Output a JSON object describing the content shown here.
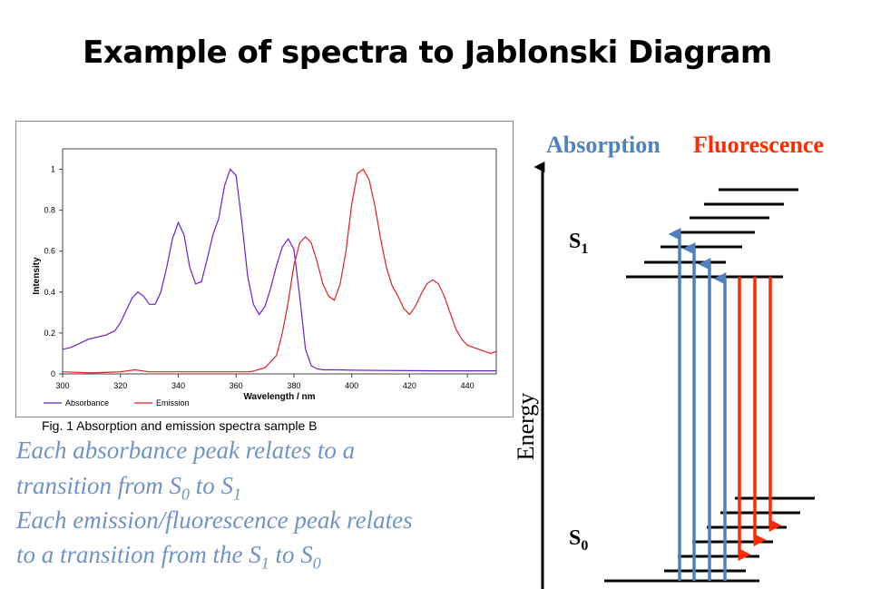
{
  "slide": {
    "title": "Example of spectra to Jablonski Diagram",
    "caption": "Fig. 1 Absorption and emission spectra sample B",
    "note_line1": "Each absorbance peak relates to a",
    "note_line2_pre": "transition from S",
    "note_line2_sub1": "0",
    "note_line2_mid": " to S",
    "note_line2_sub2": "1",
    "note_line3": "Each emission/fluorescence peak relates",
    "note_line4_pre": "to a transition from the S",
    "note_line4_sub1": "1",
    "note_line4_mid": " to S",
    "note_line4_sub2": "0"
  },
  "jablonski": {
    "absorption_label": "Absorption",
    "fluorescence_label": "Fluorescence",
    "s1_label": "S",
    "s1_sub": "1",
    "s0_label": "S",
    "s0_sub": "0",
    "energy_label": "Energy",
    "absorption_color": "#4f81bd",
    "fluorescence_color": "#ff2a00"
  },
  "chart_data": {
    "type": "line",
    "title": "",
    "xlabel": "Wavelength / nm",
    "ylabel": "Intensity",
    "xlim": [
      300,
      450
    ],
    "ylim": [
      0,
      1.1
    ],
    "x_ticks": [
      "300",
      "320",
      "340",
      "360",
      "380",
      "400",
      "420",
      "440"
    ],
    "y_ticks": [
      "0",
      "0.2",
      "0.4",
      "0.6",
      "0.8",
      "1"
    ],
    "legend": "bottom-left",
    "series": [
      {
        "name": "Absorbance",
        "color": "#6a1fd1",
        "x": [
          300,
          303,
          306,
          309,
          312,
          315,
          318,
          320,
          322,
          324,
          326,
          328,
          330,
          332,
          334,
          336,
          338,
          340,
          342,
          344,
          346,
          348,
          350,
          352,
          354,
          356,
          358,
          360,
          362,
          364,
          366,
          368,
          370,
          372,
          374,
          376,
          378,
          380,
          382,
          384,
          386,
          388,
          390,
          395,
          400,
          410,
          420,
          430,
          440,
          450
        ],
        "y": [
          0.12,
          0.13,
          0.15,
          0.17,
          0.18,
          0.19,
          0.21,
          0.25,
          0.31,
          0.37,
          0.4,
          0.38,
          0.34,
          0.34,
          0.4,
          0.52,
          0.66,
          0.74,
          0.68,
          0.52,
          0.44,
          0.45,
          0.56,
          0.68,
          0.76,
          0.92,
          1.0,
          0.97,
          0.74,
          0.48,
          0.34,
          0.29,
          0.33,
          0.42,
          0.53,
          0.62,
          0.66,
          0.61,
          0.38,
          0.12,
          0.04,
          0.025,
          0.02,
          0.02,
          0.018,
          0.017,
          0.016,
          0.015,
          0.015,
          0.015
        ]
      },
      {
        "name": "Emission",
        "color": "#e32020",
        "x": [
          300,
          310,
          320,
          325,
          330,
          340,
          350,
          360,
          365,
          370,
          374,
          376,
          378,
          380,
          382,
          384,
          386,
          388,
          390,
          392,
          394,
          396,
          398,
          400,
          402,
          404,
          406,
          408,
          410,
          412,
          414,
          416,
          418,
          420,
          422,
          424,
          426,
          428,
          430,
          432,
          434,
          436,
          438,
          440,
          442,
          444,
          446,
          448,
          450
        ],
        "y": [
          0.01,
          0.005,
          0.01,
          0.02,
          0.01,
          0.01,
          0.01,
          0.01,
          0.01,
          0.03,
          0.09,
          0.2,
          0.35,
          0.53,
          0.64,
          0.67,
          0.64,
          0.55,
          0.44,
          0.38,
          0.36,
          0.44,
          0.6,
          0.83,
          0.98,
          1.0,
          0.95,
          0.82,
          0.66,
          0.52,
          0.43,
          0.38,
          0.32,
          0.29,
          0.33,
          0.39,
          0.44,
          0.46,
          0.44,
          0.38,
          0.3,
          0.22,
          0.17,
          0.14,
          0.13,
          0.12,
          0.11,
          0.1,
          0.11
        ]
      }
    ]
  }
}
